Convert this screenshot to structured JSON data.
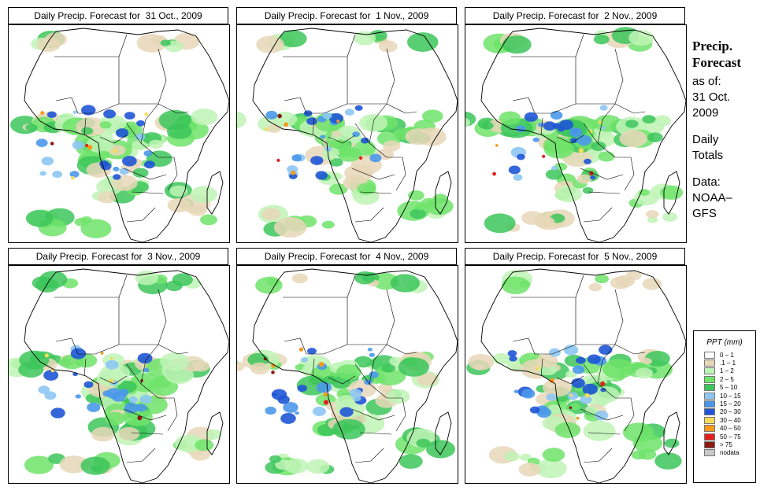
{
  "panels": [
    {
      "title": "Daily Precip. Forecast for  31 Oct., 2009",
      "seed": 11
    },
    {
      "title": "Daily Precip. Forecast for  1 Nov., 2009",
      "seed": 23
    },
    {
      "title": "Daily Precip. Forecast for  2 Nov., 2009",
      "seed": 37
    },
    {
      "title": "Daily Precip. Forecast for  3 Nov., 2009",
      "seed": 41
    },
    {
      "title": "Daily Precip. Forecast for  4 Nov., 2009",
      "seed": 53
    },
    {
      "title": "Daily Precip. Forecast for  5 Nov., 2009",
      "seed": 67
    }
  ],
  "side": {
    "heading_line1": "Precip.",
    "heading_line2": "Forecast",
    "asof_line1": "as of:",
    "asof_line2": "31 Oct.",
    "asof_line3": "2009",
    "daily_line1": "Daily",
    "daily_line2": "Totals",
    "data_line1": "Data:",
    "data_line2": "NOAA–",
    "data_line3": "GFS"
  },
  "legend": {
    "title": "PPT (mm)",
    "items": [
      {
        "label": "0 – 1",
        "color": "#ffffff"
      },
      {
        "label": ".1 – 1",
        "color": "#e8d7b8"
      },
      {
        "label": "1 – 2",
        "color": "#bff3b6"
      },
      {
        "label": "2 – 5",
        "color": "#6fe36a"
      },
      {
        "label": "5 – 10",
        "color": "#3cc65a"
      },
      {
        "label": "10 – 15",
        "color": "#8ec6f3"
      },
      {
        "label": "15 – 20",
        "color": "#4a98ea"
      },
      {
        "label": "20 – 30",
        "color": "#1f55d6"
      },
      {
        "label": "30 – 40",
        "color": "#f5dd5a"
      },
      {
        "label": "40 – 50",
        "color": "#f59a1a"
      },
      {
        "label": "50 – 75",
        "color": "#e0201a"
      },
      {
        "label": "> 75",
        "color": "#8a1a12"
      },
      {
        "label": "nodata",
        "color": "#c8c8c8"
      }
    ]
  }
}
